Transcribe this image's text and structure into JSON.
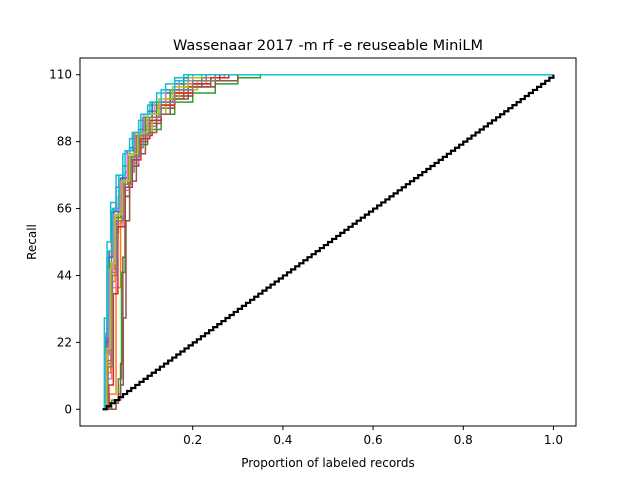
{
  "chart_data": {
    "type": "line",
    "title": "Wassenaar 2017 -m rf -e reuseable MiniLM",
    "xlabel": "Proportion of labeled records",
    "ylabel": "Recall",
    "xlim": [
      -0.05,
      1.05
    ],
    "ylim": [
      -5.5,
      115.5
    ],
    "xticks": [
      {
        "value": 0.2,
        "label": "0.2"
      },
      {
        "value": 0.4,
        "label": "0.4"
      },
      {
        "value": 0.6,
        "label": "0.6"
      },
      {
        "value": 0.8,
        "label": "0.8"
      },
      {
        "value": 1.0,
        "label": "1.0"
      }
    ],
    "yticks": [
      {
        "value": 0,
        "label": "0"
      },
      {
        "value": 22,
        "label": "22"
      },
      {
        "value": 44,
        "label": "44"
      },
      {
        "value": 66,
        "label": "66"
      },
      {
        "value": 88,
        "label": "88"
      },
      {
        "value": 110,
        "label": "110"
      }
    ],
    "grid": false,
    "legend": "none",
    "random_baseline": {
      "color": "#000000",
      "points": [
        [
          0.0,
          0
        ],
        [
          1.0,
          110
        ]
      ]
    },
    "series": [
      {
        "color": "#1f77b4",
        "points": [
          [
            0,
            0
          ],
          [
            0.005,
            20
          ],
          [
            0.01,
            50
          ],
          [
            0.02,
            65
          ],
          [
            0.03,
            73
          ],
          [
            0.045,
            80
          ],
          [
            0.06,
            86
          ],
          [
            0.08,
            92
          ],
          [
            0.1,
            98
          ],
          [
            0.12,
            101
          ],
          [
            0.14,
            104
          ],
          [
            0.16,
            107
          ],
          [
            0.18,
            109
          ],
          [
            0.2,
            110
          ],
          [
            1.0,
            110
          ]
        ]
      },
      {
        "color": "#ff7f0e",
        "points": [
          [
            0,
            0
          ],
          [
            0.015,
            5
          ],
          [
            0.03,
            40
          ],
          [
            0.04,
            62
          ],
          [
            0.05,
            75
          ],
          [
            0.065,
            84
          ],
          [
            0.08,
            90
          ],
          [
            0.1,
            95
          ],
          [
            0.13,
            99
          ],
          [
            0.16,
            103
          ],
          [
            0.2,
            106
          ],
          [
            0.25,
            108
          ],
          [
            0.3,
            110
          ],
          [
            1.0,
            110
          ]
        ]
      },
      {
        "color": "#2ca02c",
        "points": [
          [
            0,
            0
          ],
          [
            0.02,
            3
          ],
          [
            0.035,
            10
          ],
          [
            0.042,
            45
          ],
          [
            0.05,
            70
          ],
          [
            0.06,
            80
          ],
          [
            0.08,
            87
          ],
          [
            0.1,
            92
          ],
          [
            0.13,
            97
          ],
          [
            0.16,
            101
          ],
          [
            0.2,
            104
          ],
          [
            0.25,
            107
          ],
          [
            0.3,
            109
          ],
          [
            0.35,
            110
          ],
          [
            1.0,
            110
          ]
        ]
      },
      {
        "color": "#d62728",
        "points": [
          [
            0,
            0
          ],
          [
            0.01,
            15
          ],
          [
            0.02,
            45
          ],
          [
            0.03,
            62
          ],
          [
            0.045,
            74
          ],
          [
            0.06,
            82
          ],
          [
            0.08,
            90
          ],
          [
            0.11,
            97
          ],
          [
            0.14,
            102
          ],
          [
            0.18,
            106
          ],
          [
            0.22,
            108
          ],
          [
            0.26,
            110
          ],
          [
            1.0,
            110
          ]
        ]
      },
      {
        "color": "#9467bd",
        "points": [
          [
            0,
            0
          ],
          [
            0.008,
            25
          ],
          [
            0.015,
            52
          ],
          [
            0.025,
            66
          ],
          [
            0.04,
            76
          ],
          [
            0.055,
            83
          ],
          [
            0.075,
            90
          ],
          [
            0.1,
            96
          ],
          [
            0.13,
            100
          ],
          [
            0.16,
            104
          ],
          [
            0.2,
            107
          ],
          [
            0.24,
            109
          ],
          [
            0.28,
            110
          ],
          [
            1.0,
            110
          ]
        ]
      },
      {
        "color": "#8c564b",
        "points": [
          [
            0,
            0
          ],
          [
            0.02,
            2
          ],
          [
            0.035,
            5
          ],
          [
            0.04,
            15
          ],
          [
            0.045,
            50
          ],
          [
            0.05,
            70
          ],
          [
            0.06,
            80
          ],
          [
            0.08,
            88
          ],
          [
            0.1,
            94
          ],
          [
            0.13,
            99
          ],
          [
            0.16,
            103
          ],
          [
            0.2,
            106
          ],
          [
            0.25,
            108
          ],
          [
            0.3,
            110
          ],
          [
            1.0,
            110
          ]
        ]
      },
      {
        "color": "#e377c2",
        "points": [
          [
            0,
            0
          ],
          [
            0.01,
            10
          ],
          [
            0.02,
            40
          ],
          [
            0.03,
            60
          ],
          [
            0.045,
            72
          ],
          [
            0.06,
            81
          ],
          [
            0.08,
            89
          ],
          [
            0.1,
            95
          ],
          [
            0.13,
            100
          ],
          [
            0.16,
            104
          ],
          [
            0.2,
            107
          ],
          [
            0.24,
            109
          ],
          [
            0.27,
            110
          ],
          [
            1.0,
            110
          ]
        ]
      },
      {
        "color": "#7f7f7f",
        "points": [
          [
            0,
            0
          ],
          [
            0.005,
            10
          ],
          [
            0.012,
            40
          ],
          [
            0.02,
            58
          ],
          [
            0.035,
            70
          ],
          [
            0.05,
            78
          ],
          [
            0.07,
            86
          ],
          [
            0.09,
            93
          ],
          [
            0.12,
            99
          ],
          [
            0.15,
            104
          ],
          [
            0.18,
            107
          ],
          [
            0.22,
            109
          ],
          [
            0.25,
            110
          ],
          [
            1.0,
            110
          ]
        ]
      },
      {
        "color": "#bcbd22",
        "points": [
          [
            0,
            0
          ],
          [
            0.012,
            18
          ],
          [
            0.022,
            48
          ],
          [
            0.032,
            64
          ],
          [
            0.048,
            75
          ],
          [
            0.065,
            84
          ],
          [
            0.085,
            91
          ],
          [
            0.11,
            97
          ],
          [
            0.14,
            102
          ],
          [
            0.17,
            105
          ],
          [
            0.21,
            108
          ],
          [
            0.25,
            110
          ],
          [
            1.0,
            110
          ]
        ]
      },
      {
        "color": "#17becf",
        "points": [
          [
            0,
            0
          ],
          [
            0.004,
            30
          ],
          [
            0.01,
            55
          ],
          [
            0.018,
            68
          ],
          [
            0.03,
            77
          ],
          [
            0.045,
            84
          ],
          [
            0.06,
            89
          ],
          [
            0.08,
            95
          ],
          [
            0.1,
            100
          ],
          [
            0.12,
            104
          ],
          [
            0.14,
            107
          ],
          [
            0.16,
            109
          ],
          [
            0.18,
            110
          ],
          [
            1.0,
            110
          ]
        ]
      },
      {
        "color": "#1f77b4",
        "points": [
          [
            0,
            0
          ],
          [
            0.006,
            22
          ],
          [
            0.014,
            50
          ],
          [
            0.024,
            65
          ],
          [
            0.04,
            76
          ],
          [
            0.055,
            85
          ],
          [
            0.07,
            91
          ],
          [
            0.09,
            96
          ],
          [
            0.11,
            101
          ],
          [
            0.14,
            105
          ],
          [
            0.17,
            108
          ],
          [
            0.2,
            110
          ],
          [
            1.0,
            110
          ]
        ]
      },
      {
        "color": "#ff7f0e",
        "points": [
          [
            0,
            0
          ],
          [
            0.01,
            12
          ],
          [
            0.018,
            42
          ],
          [
            0.028,
            61
          ],
          [
            0.042,
            73
          ],
          [
            0.058,
            82
          ],
          [
            0.075,
            89
          ],
          [
            0.095,
            95
          ],
          [
            0.12,
            100
          ],
          [
            0.15,
            104
          ],
          [
            0.19,
            107
          ],
          [
            0.23,
            109
          ],
          [
            0.27,
            110
          ],
          [
            1.0,
            110
          ]
        ]
      },
      {
        "color": "#2ca02c",
        "points": [
          [
            0,
            0
          ],
          [
            0.008,
            20
          ],
          [
            0.016,
            48
          ],
          [
            0.026,
            63
          ],
          [
            0.04,
            74
          ],
          [
            0.056,
            83
          ],
          [
            0.074,
            90
          ],
          [
            0.095,
            96
          ],
          [
            0.12,
            101
          ],
          [
            0.15,
            105
          ],
          [
            0.18,
            108
          ],
          [
            0.22,
            110
          ],
          [
            1.0,
            110
          ]
        ]
      },
      {
        "color": "#d62728",
        "points": [
          [
            0,
            0
          ],
          [
            0.014,
            8
          ],
          [
            0.024,
            38
          ],
          [
            0.034,
            60
          ],
          [
            0.05,
            73
          ],
          [
            0.066,
            82
          ],
          [
            0.085,
            89
          ],
          [
            0.105,
            95
          ],
          [
            0.13,
            100
          ],
          [
            0.16,
            104
          ],
          [
            0.2,
            107
          ],
          [
            0.24,
            109
          ],
          [
            0.28,
            110
          ],
          [
            1.0,
            110
          ]
        ]
      },
      {
        "color": "#9467bd",
        "points": [
          [
            0,
            0
          ],
          [
            0.01,
            16
          ],
          [
            0.02,
            46
          ],
          [
            0.03,
            62
          ],
          [
            0.046,
            74
          ],
          [
            0.062,
            83
          ],
          [
            0.08,
            90
          ],
          [
            0.1,
            96
          ],
          [
            0.125,
            101
          ],
          [
            0.155,
            105
          ],
          [
            0.19,
            108
          ],
          [
            0.23,
            110
          ],
          [
            1.0,
            110
          ]
        ]
      },
      {
        "color": "#8c564b",
        "points": [
          [
            0,
            0
          ],
          [
            0.03,
            3
          ],
          [
            0.04,
            8
          ],
          [
            0.046,
            30
          ],
          [
            0.052,
            62
          ],
          [
            0.06,
            75
          ],
          [
            0.075,
            84
          ],
          [
            0.095,
            91
          ],
          [
            0.12,
            97
          ],
          [
            0.15,
            102
          ],
          [
            0.19,
            106
          ],
          [
            0.24,
            108
          ],
          [
            0.3,
            110
          ],
          [
            1.0,
            110
          ]
        ]
      },
      {
        "color": "#e377c2",
        "points": [
          [
            0,
            0
          ],
          [
            0.007,
            18
          ],
          [
            0.015,
            46
          ],
          [
            0.025,
            64
          ],
          [
            0.04,
            75
          ],
          [
            0.055,
            84
          ],
          [
            0.072,
            91
          ],
          [
            0.092,
            97
          ],
          [
            0.115,
            101
          ],
          [
            0.14,
            105
          ],
          [
            0.17,
            108
          ],
          [
            0.2,
            110
          ],
          [
            1.0,
            110
          ]
        ]
      },
      {
        "color": "#7f7f7f",
        "points": [
          [
            0,
            0
          ],
          [
            0.012,
            14
          ],
          [
            0.022,
            44
          ],
          [
            0.032,
            62
          ],
          [
            0.048,
            74
          ],
          [
            0.064,
            83
          ],
          [
            0.082,
            90
          ],
          [
            0.104,
            96
          ],
          [
            0.13,
            101
          ],
          [
            0.16,
            105
          ],
          [
            0.2,
            108
          ],
          [
            0.25,
            110
          ],
          [
            1.0,
            110
          ]
        ]
      },
      {
        "color": "#bcbd22",
        "points": [
          [
            0,
            0
          ],
          [
            0.009,
            20
          ],
          [
            0.018,
            48
          ],
          [
            0.028,
            64
          ],
          [
            0.044,
            75
          ],
          [
            0.06,
            84
          ],
          [
            0.078,
            91
          ],
          [
            0.1,
            97
          ],
          [
            0.125,
            102
          ],
          [
            0.155,
            106
          ],
          [
            0.19,
            109
          ],
          [
            0.22,
            110
          ],
          [
            1.0,
            110
          ]
        ]
      },
      {
        "color": "#17becf",
        "points": [
          [
            0,
            0
          ],
          [
            0.005,
            24
          ],
          [
            0.012,
            52
          ],
          [
            0.022,
            66
          ],
          [
            0.036,
            77
          ],
          [
            0.05,
            85
          ],
          [
            0.066,
            91
          ],
          [
            0.085,
            97
          ],
          [
            0.105,
            101
          ],
          [
            0.13,
            105
          ],
          [
            0.16,
            108
          ],
          [
            0.19,
            110
          ],
          [
            1.0,
            110
          ]
        ]
      }
    ]
  }
}
